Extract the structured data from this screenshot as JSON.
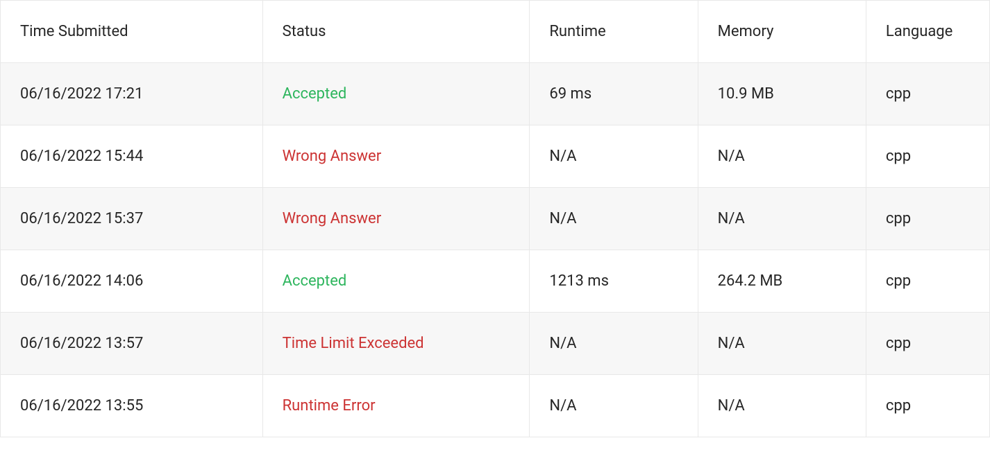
{
  "table": {
    "columns": [
      "Time Submitted",
      "Status",
      "Runtime",
      "Memory",
      "Language"
    ],
    "status_colors": {
      "Accepted": "#2db55d",
      "Wrong Answer": "#cc3333",
      "Time Limit Exceeded": "#cc3333",
      "Runtime Error": "#cc3333"
    },
    "row_colors": {
      "odd": "#f7f7f7",
      "even": "#ffffff"
    },
    "border_color": "#e8e8e8",
    "text_color": "#262626",
    "rows": [
      {
        "time": "06/16/2022 17:21",
        "status": "Accepted",
        "status_class": "accepted",
        "runtime": "69 ms",
        "memory": "10.9 MB",
        "language": "cpp"
      },
      {
        "time": "06/16/2022 15:44",
        "status": "Wrong Answer",
        "status_class": "wrong-answer",
        "runtime": "N/A",
        "memory": "N/A",
        "language": "cpp"
      },
      {
        "time": "06/16/2022 15:37",
        "status": "Wrong Answer",
        "status_class": "wrong-answer",
        "runtime": "N/A",
        "memory": "N/A",
        "language": "cpp"
      },
      {
        "time": "06/16/2022 14:06",
        "status": "Accepted",
        "status_class": "accepted",
        "runtime": "1213 ms",
        "memory": "264.2 MB",
        "language": "cpp"
      },
      {
        "time": "06/16/2022 13:57",
        "status": "Time Limit Exceeded",
        "status_class": "time-limit-exceeded",
        "runtime": "N/A",
        "memory": "N/A",
        "language": "cpp"
      },
      {
        "time": "06/16/2022 13:55",
        "status": "Runtime Error",
        "status_class": "runtime-error",
        "runtime": "N/A",
        "memory": "N/A",
        "language": "cpp"
      }
    ]
  }
}
